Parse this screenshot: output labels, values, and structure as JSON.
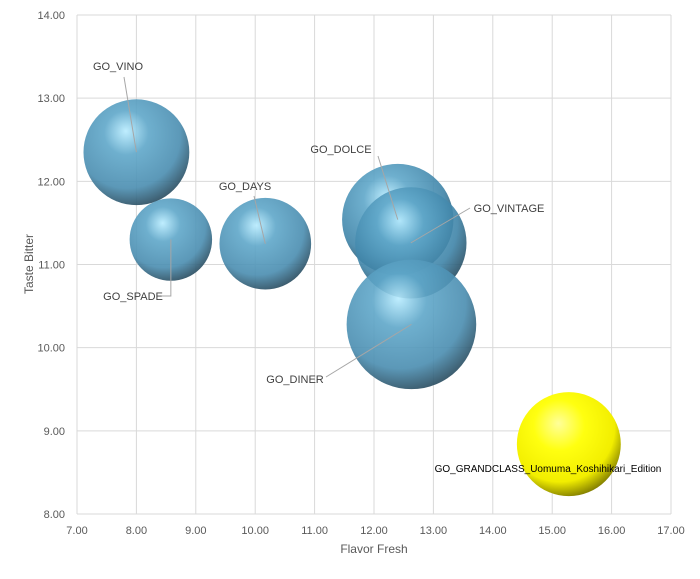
{
  "chart_data": {
    "type": "bubble",
    "title": "",
    "xlabel": "Flavor Fresh",
    "ylabel": "Taste Bitter",
    "xlim": [
      7,
      17
    ],
    "ylim": [
      8,
      14
    ],
    "xticks": [
      "7.00",
      "8.00",
      "9.00",
      "10.00",
      "11.00",
      "12.00",
      "13.00",
      "14.00",
      "15.00",
      "16.00",
      "17.00"
    ],
    "yticks": [
      "8.00",
      "9.00",
      "10.00",
      "11.00",
      "12.00",
      "13.00",
      "14.00"
    ],
    "grid": true,
    "legend": "none",
    "points": [
      {
        "label": "GO_VINO",
        "x": 8.0,
        "y": 12.35,
        "size": 28,
        "color": "#4a8db0"
      },
      {
        "label": "GO_SPADE",
        "x": 8.58,
        "y": 11.3,
        "size": 17,
        "color": "#4a8db0"
      },
      {
        "label": "GO_DAYS",
        "x": 10.17,
        "y": 11.25,
        "size": 21,
        "color": "#4a8db0"
      },
      {
        "label": "GO_DOLCE",
        "x": 12.4,
        "y": 11.54,
        "size": 31,
        "color": "#3f84a8"
      },
      {
        "label": "GO_VINTAGE",
        "x": 12.62,
        "y": 11.26,
        "size": 31,
        "color": "#3f84a8"
      },
      {
        "label": "GO_DINER",
        "x": 12.63,
        "y": 10.28,
        "size": 42,
        "color": "#4a8db0"
      },
      {
        "label": "GO_GRANDCLASS_Uomuma_Koshihikari_Edition",
        "x": 15.28,
        "y": 8.84,
        "size": 27,
        "color": "#ffff00"
      }
    ]
  }
}
